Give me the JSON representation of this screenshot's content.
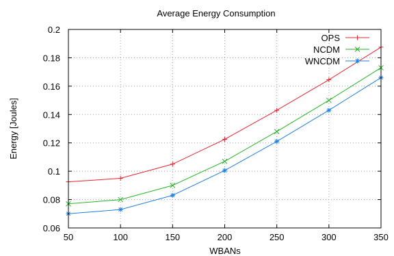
{
  "chart_data": {
    "type": "line",
    "title": "Average Energy Consumption",
    "xlabel": "WBANs",
    "ylabel": "Energy [Joules]",
    "x": [
      50,
      100,
      150,
      200,
      250,
      300,
      350
    ],
    "xlim": [
      50,
      350
    ],
    "ylim": [
      0.06,
      0.2
    ],
    "xticks": [
      50,
      100,
      150,
      200,
      250,
      300,
      350
    ],
    "yticks": [
      0.06,
      0.08,
      0.1,
      0.12,
      0.14,
      0.16,
      0.18,
      0.2
    ],
    "xtick_labels": [
      "50",
      "100",
      "150",
      "200",
      "250",
      "300",
      "350"
    ],
    "ytick_labels": [
      "0.06",
      "0.08",
      "0.1",
      "0.12",
      "0.14",
      "0.16",
      "0.18",
      "0.2"
    ],
    "grid": true,
    "legend_position": "top-right",
    "series": [
      {
        "name": "OPS",
        "color": "#e8202a",
        "marker": "plus",
        "values": [
          0.0925,
          0.095,
          0.105,
          0.1225,
          0.143,
          0.1645,
          0.1875
        ]
      },
      {
        "name": "NCDM",
        "color": "#22b522",
        "marker": "cross",
        "values": [
          0.077,
          0.08,
          0.09,
          0.107,
          0.128,
          0.15,
          0.173
        ]
      },
      {
        "name": "WNCDM",
        "color": "#1f7ee0",
        "marker": "star",
        "values": [
          0.07,
          0.073,
          0.083,
          0.1005,
          0.121,
          0.143,
          0.166
        ]
      }
    ]
  }
}
